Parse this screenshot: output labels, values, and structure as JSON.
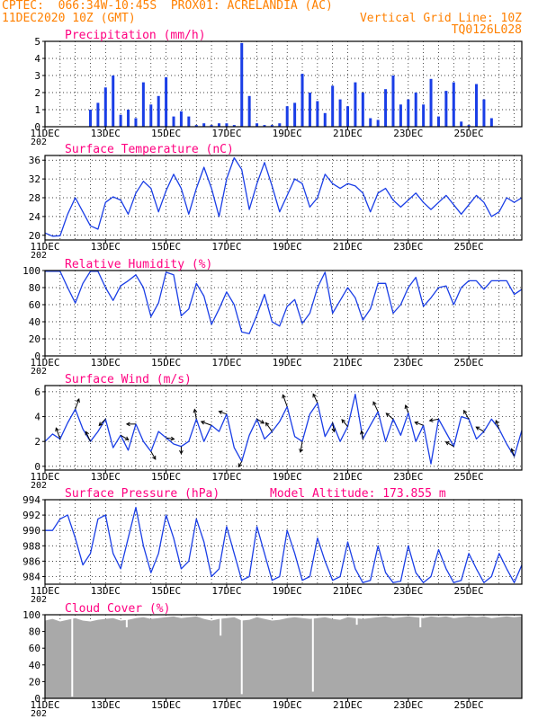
{
  "header": {
    "line1_left": "CPTEC:  066:34W-10:45S  PROX01: ACRELANDIA (AC)",
    "line2_left": "11DEC2020 10Z (GMT)",
    "line2_right": "Vertical Grid Line: 10Z",
    "line3_right": "TQ0126L028"
  },
  "colors": {
    "header": "#ff8000",
    "panel_title": "#ff0080",
    "series": "#1a3ee6",
    "cloud": "#a9a9a9",
    "wind_arrow": "#000000"
  },
  "x_tick_labels": [
    "11DEC",
    "13DEC",
    "15DEC",
    "17DEC",
    "19DEC",
    "21DEC",
    "23DEC",
    "25DEC"
  ],
  "cut_label": "202",
  "chart_data": [
    {
      "id": "precip",
      "type": "bar",
      "title": "Precipitation (mm/h)",
      "ylim": [
        0,
        5
      ],
      "yticks": [
        0,
        1,
        2,
        3,
        4,
        5
      ],
      "x": [
        1.5,
        1.75,
        2.0,
        2.25,
        2.5,
        2.75,
        3.0,
        3.25,
        3.5,
        3.75,
        4.0,
        4.25,
        4.5,
        4.75,
        5.0,
        5.25,
        5.5,
        5.75,
        6.0,
        6.25,
        6.5,
        6.75,
        7.0,
        7.25,
        7.5,
        7.75,
        8.0,
        8.25,
        8.5,
        8.75,
        9.0,
        9.25,
        9.5,
        9.75,
        10.0,
        10.25,
        10.5,
        10.75,
        11.0,
        11.25,
        11.5,
        11.75,
        12.0,
        12.25,
        12.5,
        12.75,
        13.0,
        13.25,
        13.5,
        13.75,
        14.0,
        14.25,
        14.5,
        14.75
      ],
      "values": [
        1.0,
        1.4,
        2.3,
        3.0,
        0.7,
        1.0,
        0.5,
        2.6,
        1.3,
        1.8,
        2.9,
        0.6,
        0.9,
        0.6,
        0.1,
        0.2,
        0.1,
        0.2,
        0.2,
        0.1,
        4.9,
        1.8,
        0.2,
        0.1,
        0.1,
        0.2,
        1.2,
        1.4,
        3.1,
        2.0,
        1.5,
        0.8,
        2.4,
        1.6,
        1.2,
        2.6,
        2.0,
        0.5,
        0.4,
        2.2,
        3.0,
        1.3,
        1.6,
        2.0,
        1.3,
        2.8,
        0.6,
        2.1,
        2.6,
        0.3,
        0.1,
        2.5,
        1.6,
        0.5
      ]
    },
    {
      "id": "temp",
      "type": "line",
      "title": "Surface Temperature (nC)",
      "ylim": [
        19,
        37
      ],
      "yticks": [
        20,
        24,
        28,
        32,
        36
      ],
      "x": [
        0,
        0.25,
        0.5,
        0.75,
        1.0,
        1.25,
        1.5,
        1.75,
        2.0,
        2.25,
        2.5,
        2.75,
        3.0,
        3.25,
        3.5,
        3.75,
        4.0,
        4.25,
        4.5,
        4.75,
        5.0,
        5.25,
        5.5,
        5.75,
        6.0,
        6.25,
        6.5,
        6.75,
        7.0,
        7.25,
        7.5,
        7.75,
        8.0,
        8.25,
        8.5,
        8.75,
        9.0,
        9.25,
        9.5,
        9.75,
        10.0,
        10.25,
        10.5,
        10.75,
        11.0,
        11.25,
        11.5,
        11.75,
        12.0,
        12.25,
        12.5,
        12.75,
        13.0,
        13.25,
        13.5,
        13.75,
        14.0,
        14.25,
        14.5,
        14.75,
        15.0,
        15.25,
        15.5,
        15.75
      ],
      "values": [
        20.5,
        19.8,
        19.9,
        24.5,
        28.0,
        25.0,
        22.0,
        21.3,
        27.0,
        28.2,
        27.5,
        24.5,
        29.0,
        31.5,
        30.0,
        25.0,
        29.5,
        33.0,
        30.0,
        24.5,
        30.0,
        34.5,
        30.0,
        24.0,
        32.0,
        36.5,
        34.0,
        25.5,
        31.0,
        35.5,
        30.5,
        25.0,
        28.5,
        32.0,
        31.0,
        26.0,
        28.0,
        33.0,
        31.0,
        30.0,
        31.0,
        30.5,
        29.0,
        25.0,
        29.0,
        30.0,
        27.5,
        26.0,
        27.5,
        29.0,
        27.0,
        25.5,
        27.0,
        28.5,
        26.5,
        24.5,
        26.5,
        28.5,
        27.0,
        24.0,
        25.0,
        28.0,
        27.0,
        28.0
      ]
    },
    {
      "id": "rh",
      "type": "line",
      "title": "Relative Humidity (%)",
      "ylim": [
        0,
        100
      ],
      "yticks": [
        0,
        20,
        40,
        60,
        80,
        100
      ],
      "x": [
        0,
        0.25,
        0.5,
        0.75,
        1.0,
        1.25,
        1.5,
        1.75,
        2.0,
        2.25,
        2.5,
        2.75,
        3.0,
        3.25,
        3.5,
        3.75,
        4.0,
        4.25,
        4.5,
        4.75,
        5.0,
        5.25,
        5.5,
        5.75,
        6.0,
        6.25,
        6.5,
        6.75,
        7.0,
        7.25,
        7.5,
        7.75,
        8.0,
        8.25,
        8.5,
        8.75,
        9.0,
        9.25,
        9.5,
        9.75,
        10.0,
        10.25,
        10.5,
        10.75,
        11.0,
        11.25,
        11.5,
        11.75,
        12.0,
        12.25,
        12.5,
        12.75,
        13.0,
        13.25,
        13.5,
        13.75,
        14.0,
        14.25,
        14.5,
        14.75,
        15.0,
        15.25,
        15.5,
        15.75
      ],
      "values": [
        99,
        99,
        99,
        80,
        62,
        85,
        99,
        99,
        80,
        65,
        82,
        88,
        95,
        80,
        46,
        62,
        98,
        95,
        47,
        55,
        85,
        70,
        37,
        55,
        75,
        60,
        28,
        26,
        48,
        72,
        40,
        35,
        58,
        66,
        38,
        50,
        80,
        98,
        50,
        65,
        80,
        68,
        42,
        55,
        85,
        85,
        50,
        60,
        80,
        92,
        58,
        68,
        80,
        82,
        60,
        80,
        88,
        88,
        78,
        88,
        88,
        88,
        72,
        78
      ]
    },
    {
      "id": "wind",
      "type": "line",
      "title": "Surface Wind (m/s)",
      "ylim": [
        -0.3,
        6.5
      ],
      "yticks": [
        0,
        2,
        4,
        6
      ],
      "x": [
        0,
        0.25,
        0.5,
        0.75,
        1.0,
        1.25,
        1.5,
        1.75,
        2.0,
        2.25,
        2.5,
        2.75,
        3.0,
        3.25,
        3.5,
        3.75,
        4.0,
        4.25,
        4.5,
        4.75,
        5.0,
        5.25,
        5.5,
        5.75,
        6.0,
        6.25,
        6.5,
        6.75,
        7.0,
        7.25,
        7.5,
        7.75,
        8.0,
        8.25,
        8.5,
        8.75,
        9.0,
        9.25,
        9.5,
        9.75,
        10.0,
        10.25,
        10.5,
        10.75,
        11.0,
        11.25,
        11.5,
        11.75,
        12.0,
        12.25,
        12.5,
        12.75,
        13.0,
        13.25,
        13.5,
        13.75,
        14.0,
        14.25,
        14.5,
        14.75,
        15.0,
        15.25,
        15.5,
        15.75
      ],
      "values": [
        2.0,
        2.6,
        2.2,
        3.5,
        4.6,
        3.0,
        2.0,
        2.8,
        3.8,
        1.5,
        2.5,
        1.3,
        3.4,
        2.0,
        1.2,
        2.8,
        2.3,
        1.8,
        1.6,
        2.0,
        3.8,
        2.0,
        3.3,
        2.8,
        4.2,
        1.5,
        0.4,
        2.5,
        3.8,
        2.2,
        2.8,
        3.6,
        4.8,
        2.4,
        2.0,
        4.2,
        5.1,
        2.4,
        3.5,
        2.0,
        3.2,
        5.8,
        2.2,
        3.3,
        4.4,
        2.0,
        3.8,
        2.5,
        4.3,
        2.0,
        3.3,
        0.2,
        3.8,
        2.7,
        1.6,
        4.0,
        3.8,
        2.2,
        2.8,
        3.8,
        3.0,
        1.8,
        0.8,
        2.9
      ],
      "arrows": [
        {
          "x": 0.5,
          "dir": 250,
          "len": 13
        },
        {
          "x": 1.0,
          "dir": 290,
          "len": 12
        },
        {
          "x": 1.5,
          "dir": 245,
          "len": 12
        },
        {
          "x": 2.0,
          "dir": 135,
          "len": 10
        },
        {
          "x": 2.5,
          "dir": 30,
          "len": 10
        },
        {
          "x": 3.0,
          "dir": 180,
          "len": 10
        },
        {
          "x": 3.5,
          "dir": 60,
          "len": 10
        },
        {
          "x": 4.0,
          "dir": 10,
          "len": 9
        },
        {
          "x": 4.5,
          "dir": 90,
          "len": 8
        },
        {
          "x": 5.0,
          "dir": 260,
          "len": 11
        },
        {
          "x": 5.5,
          "dir": 200,
          "len": 12
        },
        {
          "x": 6.0,
          "dir": 200,
          "len": 9
        },
        {
          "x": 6.5,
          "dir": 120,
          "len": 7
        },
        {
          "x": 7.0,
          "dir": 30,
          "len": 9
        },
        {
          "x": 7.5,
          "dir": 235,
          "len": 12
        },
        {
          "x": 8.0,
          "dir": 250,
          "len": 14
        },
        {
          "x": 8.5,
          "dir": 100,
          "len": 12
        },
        {
          "x": 9.0,
          "dir": 245,
          "len": 11
        },
        {
          "x": 9.5,
          "dir": 80,
          "len": 10
        },
        {
          "x": 10.0,
          "dir": 230,
          "len": 10
        },
        {
          "x": 10.5,
          "dir": 260,
          "len": 9
        },
        {
          "x": 11.0,
          "dir": 245,
          "len": 12
        },
        {
          "x": 11.5,
          "dir": 220,
          "len": 10
        },
        {
          "x": 12.0,
          "dir": 250,
          "len": 9
        },
        {
          "x": 12.5,
          "dir": 200,
          "len": 10
        },
        {
          "x": 13.0,
          "dir": 170,
          "len": 10
        },
        {
          "x": 13.5,
          "dir": 210,
          "len": 10
        },
        {
          "x": 14.0,
          "dir": 240,
          "len": 11
        },
        {
          "x": 14.5,
          "dir": 210,
          "len": 10
        },
        {
          "x": 15.0,
          "dir": 250,
          "len": 10
        },
        {
          "x": 15.5,
          "dir": 250,
          "len": 9
        }
      ]
    },
    {
      "id": "pres",
      "type": "line",
      "title": "Surface Pressure (hPa)",
      "subtitle": "Model Altitude: 173.855  m",
      "ylim": [
        983,
        994
      ],
      "yticks": [
        984,
        986,
        988,
        990,
        992,
        994
      ],
      "x": [
        0,
        0.25,
        0.5,
        0.75,
        1.0,
        1.25,
        1.5,
        1.75,
        2.0,
        2.25,
        2.5,
        2.75,
        3.0,
        3.25,
        3.5,
        3.75,
        4.0,
        4.25,
        4.5,
        4.75,
        5.0,
        5.25,
        5.5,
        5.75,
        6.0,
        6.25,
        6.5,
        6.75,
        7.0,
        7.25,
        7.5,
        7.75,
        8.0,
        8.25,
        8.5,
        8.75,
        9.0,
        9.25,
        9.5,
        9.75,
        10.0,
        10.25,
        10.5,
        10.75,
        11.0,
        11.25,
        11.5,
        11.75,
        12.0,
        12.25,
        12.5,
        12.75,
        13.0,
        13.25,
        13.5,
        13.75,
        14.0,
        14.25,
        14.5,
        14.75,
        15.0,
        15.25,
        15.5,
        15.75
      ],
      "values": [
        990,
        990,
        991.5,
        992,
        989,
        985.5,
        987,
        991.5,
        992,
        987,
        985,
        989,
        993,
        988,
        984.5,
        987,
        992,
        989,
        985,
        986,
        991.5,
        988.5,
        984,
        985,
        990.5,
        987,
        983.5,
        984,
        990.5,
        987,
        983.5,
        984,
        990,
        987,
        983.5,
        984,
        989,
        986,
        983.5,
        984,
        988.5,
        985,
        983.2,
        983.5,
        988,
        984.5,
        983.2,
        983.4,
        988,
        984.5,
        983.2,
        984,
        987.5,
        985,
        983.2,
        983.5,
        987,
        985,
        983.2,
        984,
        987,
        985,
        983.2,
        985.5
      ]
    },
    {
      "id": "cloud",
      "type": "area",
      "title": "Cloud Cover (%)",
      "ylim": [
        0,
        100
      ],
      "yticks": [
        0,
        20,
        40,
        60,
        80,
        100
      ],
      "x": [
        0,
        0.25,
        0.5,
        0.75,
        1.0,
        1.25,
        1.5,
        1.75,
        2.0,
        2.25,
        2.5,
        2.75,
        3.0,
        3.25,
        3.5,
        3.75,
        4.0,
        4.25,
        4.5,
        4.75,
        5.0,
        5.25,
        5.5,
        5.75,
        6.0,
        6.25,
        6.5,
        6.75,
        7.0,
        7.25,
        7.5,
        7.75,
        8.0,
        8.25,
        8.5,
        8.75,
        9.0,
        9.25,
        9.5,
        9.75,
        10.0,
        10.25,
        10.5,
        10.75,
        11.0,
        11.25,
        11.5,
        11.75,
        12.0,
        12.25,
        12.5,
        12.75,
        13.0,
        13.25,
        13.5,
        13.75,
        14.0,
        14.25,
        14.5,
        14.75,
        15.0,
        15.25,
        15.5,
        15.75
      ],
      "values": [
        93,
        95,
        92,
        94,
        96,
        93,
        92,
        94,
        95,
        96,
        93,
        94,
        96,
        97,
        95,
        96,
        97,
        98,
        96,
        97,
        98,
        95,
        93,
        95,
        96,
        97,
        93,
        94,
        97,
        95,
        93,
        94,
        96,
        97,
        96,
        95,
        96,
        97,
        95,
        94,
        97,
        96,
        95,
        96,
        97,
        98,
        96,
        97,
        98,
        97,
        96,
        98,
        97,
        98,
        96,
        97,
        98,
        97,
        98,
        96,
        97,
        98,
        97,
        98
      ],
      "gaps": [
        {
          "x": 0.9,
          "y": 2
        },
        {
          "x": 2.7,
          "y": 85
        },
        {
          "x": 5.8,
          "y": 75
        },
        {
          "x": 6.5,
          "y": 5
        },
        {
          "x": 8.85,
          "y": 8
        },
        {
          "x": 10.3,
          "y": 88
        },
        {
          "x": 12.4,
          "y": 85
        }
      ]
    }
  ]
}
